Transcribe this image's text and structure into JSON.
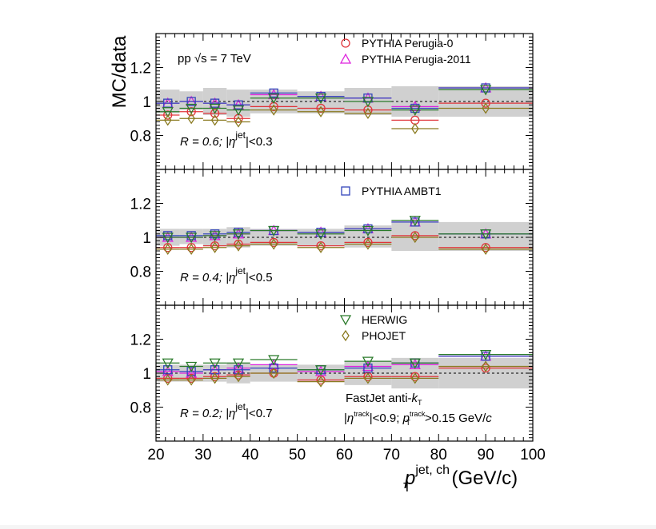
{
  "chart_data": {
    "type": "scatter",
    "ylabel": "MC/data",
    "xlabel_parts": {
      "symbol": "p",
      "sub": "T",
      "sup": "jet, ch",
      "units": "(GeV/c)"
    },
    "x_axis": {
      "range": [
        20,
        100
      ],
      "ticks": [
        20,
        30,
        40,
        50,
        60,
        70,
        80,
        90,
        100
      ]
    },
    "y_axis": {
      "range": [
        0.6,
        1.4
      ],
      "tick_labels": [
        "0.8",
        "1",
        "1.2"
      ],
      "tick_values": [
        0.8,
        1.0,
        1.2
      ]
    },
    "reference_line": 1.0,
    "bins": [
      [
        20,
        25
      ],
      [
        25,
        30
      ],
      [
        30,
        35
      ],
      [
        35,
        40
      ],
      [
        40,
        50
      ],
      [
        50,
        60
      ],
      [
        60,
        70
      ],
      [
        70,
        80
      ],
      [
        80,
        100
      ]
    ],
    "series_style": [
      {
        "name": "PYTHIA Perugia-0",
        "color": "#e0343a",
        "marker": "circle"
      },
      {
        "name": "PYTHIA Perugia-2011",
        "color": "#dd22dd",
        "marker": "triangle-up"
      },
      {
        "name": "PYTHIA AMBT1",
        "color": "#3344bb",
        "marker": "square"
      },
      {
        "name": "HERWIG",
        "color": "#2a7a2a",
        "marker": "triangle-down"
      },
      {
        "name": "PHOJET",
        "color": "#8a7a20",
        "marker": "diamond"
      }
    ],
    "panels": [
      {
        "label_R": "R = 0.6; |",
        "label_eta": "η",
        "label_sup": "jet",
        "label_cut": "|<0.3",
        "extra_text": "pp √s = 7 TeV",
        "legend": [
          "PYTHIA Perugia-0",
          "PYTHIA Perugia-2011"
        ],
        "syst_band": [
          0.93,
          0.95,
          0.92,
          0.91,
          0.93,
          0.93,
          0.92,
          0.91,
          0.91
        ],
        "syst_band_hi": [
          1.07,
          1.06,
          1.08,
          1.07,
          1.07,
          1.06,
          1.08,
          1.09,
          1.09
        ],
        "series": [
          {
            "name": "PYTHIA Perugia-0",
            "values": [
              0.92,
              0.94,
              0.93,
              0.9,
              0.97,
              0.96,
              0.95,
              0.89,
              0.99
            ]
          },
          {
            "name": "PYTHIA Perugia-2011",
            "values": [
              0.99,
              1.0,
              0.99,
              0.98,
              1.04,
              1.03,
              1.02,
              0.97,
              1.08
            ]
          },
          {
            "name": "PYTHIA AMBT1",
            "values": [
              0.99,
              1.0,
              0.99,
              0.98,
              1.05,
              1.03,
              1.02,
              0.96,
              1.08
            ]
          },
          {
            "name": "HERWIG",
            "values": [
              0.94,
              0.96,
              0.96,
              0.95,
              1.02,
              1.02,
              1.0,
              0.95,
              1.07
            ]
          },
          {
            "name": "PHOJET",
            "values": [
              0.89,
              0.9,
              0.89,
              0.88,
              0.95,
              0.94,
              0.93,
              0.84,
              0.96
            ]
          }
        ]
      },
      {
        "label_R": "R = 0.4; |",
        "label_eta": "η",
        "label_sup": "jet",
        "label_cut": "|<0.5",
        "extra_text": "",
        "legend": [
          "PYTHIA AMBT1"
        ],
        "syst_band": [
          0.95,
          0.96,
          0.95,
          0.94,
          0.95,
          0.95,
          0.94,
          0.92,
          0.92
        ],
        "syst_band_hi": [
          1.05,
          1.05,
          1.05,
          1.06,
          1.05,
          1.05,
          1.07,
          1.09,
          1.09
        ],
        "series": [
          {
            "name": "PYTHIA Perugia-0",
            "values": [
              0.94,
              0.94,
              0.95,
              0.96,
              0.97,
              0.95,
              0.97,
              1.01,
              0.94
            ]
          },
          {
            "name": "PYTHIA Perugia-2011",
            "values": [
              1.0,
              1.0,
              1.01,
              1.02,
              1.04,
              1.03,
              1.05,
              1.09,
              1.02
            ]
          },
          {
            "name": "PYTHIA AMBT1",
            "values": [
              1.01,
              1.01,
              1.02,
              1.03,
              1.04,
              1.03,
              1.05,
              1.09,
              1.02
            ]
          },
          {
            "name": "HERWIG",
            "values": [
              1.0,
              1.0,
              1.01,
              1.02,
              1.04,
              1.02,
              1.04,
              1.1,
              1.02
            ]
          },
          {
            "name": "PHOJET",
            "values": [
              0.93,
              0.93,
              0.94,
              0.95,
              0.96,
              0.94,
              0.96,
              1.0,
              0.93
            ]
          }
        ]
      },
      {
        "label_R": "R = 0.2; |",
        "label_eta": "η",
        "label_sup": "jet",
        "label_cut": "|<0.7",
        "extra_text": "",
        "legend": [
          "HERWIG",
          "PHOJET"
        ],
        "syst_band": [
          0.95,
          0.95,
          0.95,
          0.94,
          0.95,
          0.95,
          0.93,
          0.91,
          0.91
        ],
        "syst_band_hi": [
          1.05,
          1.05,
          1.05,
          1.06,
          1.05,
          1.05,
          1.07,
          1.09,
          1.09
        ],
        "series": [
          {
            "name": "PYTHIA Perugia-0",
            "values": [
              0.97,
              0.97,
              0.98,
              0.99,
              1.0,
              0.96,
              0.98,
              0.98,
              1.03
            ]
          },
          {
            "name": "PYTHIA Perugia-2011",
            "values": [
              1.01,
              1.0,
              1.02,
              1.03,
              1.05,
              1.01,
              1.04,
              1.05,
              1.1
            ]
          },
          {
            "name": "PYTHIA AMBT1",
            "values": [
              1.02,
              1.01,
              1.02,
              1.02,
              1.03,
              1.02,
              1.03,
              1.06,
              1.1
            ]
          },
          {
            "name": "HERWIG",
            "values": [
              1.06,
              1.04,
              1.06,
              1.06,
              1.08,
              1.02,
              1.07,
              1.06,
              1.11
            ]
          },
          {
            "name": "PHOJET",
            "values": [
              0.96,
              0.96,
              0.97,
              0.98,
              1.0,
              0.95,
              0.97,
              0.97,
              1.04
            ]
          }
        ]
      }
    ],
    "annotation": {
      "line1_a": "FastJet anti-",
      "line1_k": "k",
      "line1_sub": "T",
      "line2_a": "|",
      "line2_eta": "η",
      "line2_sup": "track",
      "line2_b": "|<0.9;  ",
      "line2_p": "p",
      "line2_psup": "track",
      "line2_psub": "T",
      "line2_c": ">0.15 GeV/",
      "line2_cunit": "c"
    }
  }
}
